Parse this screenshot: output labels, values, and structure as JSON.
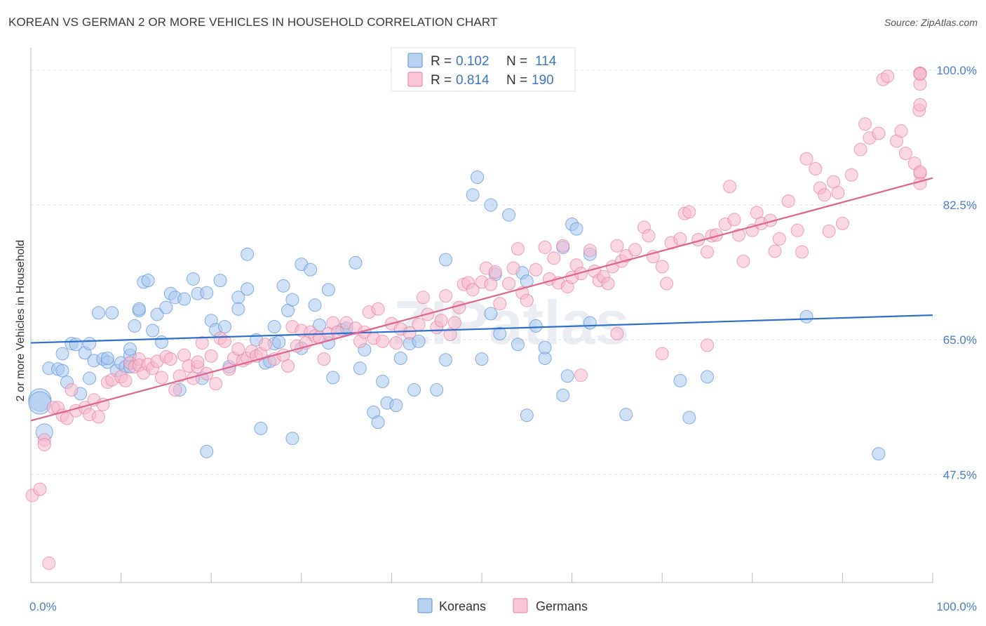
{
  "title": "KOREAN VS GERMAN 2 OR MORE VEHICLES IN HOUSEHOLD CORRELATION CHART",
  "source": "Source: ZipAtlas.com",
  "watermark": "ZIPatlas",
  "colors": {
    "koreans_fill": "#a9c8ee",
    "koreans_stroke": "#5b8fd6",
    "koreans_line": "#2f6fcc",
    "germans_fill": "#f6b8cc",
    "germans_stroke": "#e27fa0",
    "germans_line": "#e0638e",
    "tick_label": "#4a7cc7"
  },
  "legend": {
    "rows": [
      {
        "series": "koreans",
        "r_label": "R =",
        "r_value": "0.102",
        "n_label": "N =",
        "n_value": "114"
      },
      {
        "series": "germans",
        "r_label": "R =",
        "r_value": "0.814",
        "n_label": "N =",
        "n_value": "190"
      }
    ]
  },
  "chart_data": {
    "type": "scatter",
    "title": "KOREAN VS GERMAN 2 OR MORE VEHICLES IN HOUSEHOLD CORRELATION CHART",
    "xlabel": "",
    "ylabel": "2 or more Vehicles in Household",
    "xlim": [
      0,
      100
    ],
    "ylim": [
      33.5,
      102
    ],
    "x_tick_labels": [
      "0.0%",
      "100.0%"
    ],
    "y_ticks": [
      47.5,
      65.0,
      82.5,
      100.0
    ],
    "y_tick_labels": [
      "47.5%",
      "65.0%",
      "82.5%",
      "100.0%"
    ],
    "grid": "horizontal dashed",
    "legend_position": "top-center",
    "series": [
      {
        "name": "Koreans",
        "trend": {
          "x": [
            0,
            100
          ],
          "y": [
            64.6,
            68.2
          ]
        },
        "points": [
          [
            1,
            57.2
          ],
          [
            1,
            56.8
          ],
          [
            1.5,
            53
          ],
          [
            2,
            61.3
          ],
          [
            3,
            61.2
          ],
          [
            3.5,
            63.2
          ],
          [
            3.5,
            61
          ],
          [
            4,
            59.5
          ],
          [
            4.5,
            64.5
          ],
          [
            5,
            64.4
          ],
          [
            5.5,
            58
          ],
          [
            6,
            63.3
          ],
          [
            6.5,
            60
          ],
          [
            6.5,
            64.5
          ],
          [
            7,
            62.3
          ],
          [
            7.5,
            68.5
          ],
          [
            8,
            62.5
          ],
          [
            8.5,
            62.1
          ],
          [
            8.5,
            62.6
          ],
          [
            9,
            68.5
          ],
          [
            9.5,
            61
          ],
          [
            10,
            62
          ],
          [
            10.5,
            61.5
          ],
          [
            11,
            62
          ],
          [
            11,
            63
          ],
          [
            11,
            61.5
          ],
          [
            11,
            63.8
          ],
          [
            11.5,
            66.8
          ],
          [
            12,
            68.8
          ],
          [
            12,
            69
          ],
          [
            12.5,
            72.5
          ],
          [
            13,
            72.7
          ],
          [
            13.5,
            66.2
          ],
          [
            14,
            68.3
          ],
          [
            14.5,
            64.7
          ],
          [
            15,
            69.2
          ],
          [
            15.5,
            71
          ],
          [
            16,
            70.5
          ],
          [
            16.5,
            58.5
          ],
          [
            17,
            70.3
          ],
          [
            18,
            72.9
          ],
          [
            18.5,
            71
          ],
          [
            19,
            60
          ],
          [
            19.5,
            71.1
          ],
          [
            19.5,
            50.5
          ],
          [
            20,
            67.5
          ],
          [
            20.5,
            66.3
          ],
          [
            21,
            72.7
          ],
          [
            21.5,
            66.7
          ],
          [
            22,
            61.5
          ],
          [
            23,
            70.5
          ],
          [
            23,
            69
          ],
          [
            24,
            71.6
          ],
          [
            24,
            76.1
          ],
          [
            25,
            65
          ],
          [
            25.5,
            53.5
          ],
          [
            26,
            62
          ],
          [
            26.5,
            62.2
          ],
          [
            27,
            66.7
          ],
          [
            27,
            64.5
          ],
          [
            27.5,
            64.7
          ],
          [
            28,
            72
          ],
          [
            28.5,
            68.8
          ],
          [
            29,
            70.2
          ],
          [
            29,
            52.2
          ],
          [
            30,
            74.8
          ],
          [
            30,
            63.9
          ],
          [
            31,
            74.1
          ],
          [
            31.5,
            69.5
          ],
          [
            32,
            66.9
          ],
          [
            33,
            64.6
          ],
          [
            33,
            71.5
          ],
          [
            33.5,
            60.1
          ],
          [
            34.5,
            66.3
          ],
          [
            35,
            66.5
          ],
          [
            36,
            75
          ],
          [
            36.5,
            61.3
          ],
          [
            37,
            63.7
          ],
          [
            38,
            55.6
          ],
          [
            38.5,
            54.3
          ],
          [
            39,
            59.6
          ],
          [
            39.5,
            56.8
          ],
          [
            40.5,
            56.5
          ],
          [
            41,
            62.6
          ],
          [
            42,
            64.5
          ],
          [
            42.5,
            58.5
          ],
          [
            43,
            64.8
          ],
          [
            45,
            58.5
          ],
          [
            46,
            75.4
          ],
          [
            46,
            62.4
          ],
          [
            49,
            83.8
          ],
          [
            49.5,
            86.1
          ],
          [
            50,
            62.5
          ],
          [
            51,
            82.5
          ],
          [
            51,
            68.4
          ],
          [
            51.5,
            73.5
          ],
          [
            52,
            65.8
          ],
          [
            53,
            81.2
          ],
          [
            54,
            64.4
          ],
          [
            54.5,
            73.7
          ],
          [
            55,
            72.6
          ],
          [
            55,
            55.2
          ],
          [
            56,
            66.8
          ],
          [
            57,
            62.6
          ],
          [
            57,
            64
          ],
          [
            59,
            57.8
          ],
          [
            59,
            77
          ],
          [
            59.5,
            60.3
          ],
          [
            60,
            80
          ],
          [
            60.5,
            79.4
          ],
          [
            62,
            76.1
          ],
          [
            62,
            67.2
          ],
          [
            66,
            55.3
          ],
          [
            72,
            59.7
          ],
          [
            73,
            54.9
          ],
          [
            75,
            60.2
          ],
          [
            86,
            68
          ],
          [
            94,
            50.2
          ]
        ]
      },
      {
        "name": "Germans",
        "trend": {
          "x": [
            0,
            100
          ],
          "y": [
            54.5,
            86.0
          ]
        },
        "points": [
          [
            0,
            44.8
          ],
          [
            1,
            45.6
          ],
          [
            1.5,
            52
          ],
          [
            1.5,
            51.4
          ],
          [
            2,
            36
          ],
          [
            2.5,
            56.2
          ],
          [
            3,
            56.2
          ],
          [
            3.5,
            55.2
          ],
          [
            4,
            54.8
          ],
          [
            4.5,
            58.5
          ],
          [
            5,
            55.8
          ],
          [
            6,
            56.2
          ],
          [
            6.5,
            55.3
          ],
          [
            7,
            57.2
          ],
          [
            7.5,
            55
          ],
          [
            8,
            56.6
          ],
          [
            8.5,
            59.5
          ],
          [
            9,
            59.8
          ],
          [
            10,
            60.2
          ],
          [
            10.5,
            59.7
          ],
          [
            11,
            62
          ],
          [
            11.5,
            61.5
          ],
          [
            12,
            62.5
          ],
          [
            12,
            61.7
          ],
          [
            12.5,
            60.7
          ],
          [
            13,
            61.8
          ],
          [
            13.5,
            61.3
          ],
          [
            14,
            62.2
          ],
          [
            14.5,
            60.1
          ],
          [
            15,
            62.8
          ],
          [
            15.5,
            62.5
          ],
          [
            16,
            58.5
          ],
          [
            16.5,
            60.3
          ],
          [
            17,
            63
          ],
          [
            17.5,
            61.6
          ],
          [
            18,
            60
          ],
          [
            18.5,
            61.5
          ],
          [
            18.5,
            62.1
          ],
          [
            19,
            64.6
          ],
          [
            19.5,
            60.6
          ],
          [
            20,
            62.9
          ],
          [
            20.5,
            59.3
          ],
          [
            21,
            65.2
          ],
          [
            21.5,
            64.8
          ],
          [
            22,
            61.2
          ],
          [
            22.5,
            62.6
          ],
          [
            23,
            63.8
          ],
          [
            23.5,
            62.3
          ],
          [
            24,
            62.6
          ],
          [
            24.5,
            63.5
          ],
          [
            25,
            62.9
          ],
          [
            25.5,
            63.2
          ],
          [
            26,
            64.4
          ],
          [
            27,
            62.5
          ],
          [
            28,
            63
          ],
          [
            28.5,
            61.6
          ],
          [
            29,
            66.7
          ],
          [
            29.5,
            64.2
          ],
          [
            30,
            66.2
          ],
          [
            30.5,
            64.6
          ],
          [
            31,
            66
          ],
          [
            31.5,
            65.5
          ],
          [
            32,
            65.3
          ],
          [
            32.5,
            62.5
          ],
          [
            33,
            65.8
          ],
          [
            33.5,
            67.2
          ],
          [
            34,
            66
          ],
          [
            35,
            67.2
          ],
          [
            36,
            66.5
          ],
          [
            36.5,
            64.8
          ],
          [
            37,
            66
          ],
          [
            37.5,
            68.6
          ],
          [
            38,
            65.2
          ],
          [
            38.5,
            69
          ],
          [
            39,
            64.8
          ],
          [
            40,
            67.1
          ],
          [
            40.5,
            64.6
          ],
          [
            41,
            66.4
          ],
          [
            42,
            65.9
          ],
          [
            43,
            67
          ],
          [
            43.5,
            70.5
          ],
          [
            44,
            68.3
          ],
          [
            45,
            66.6
          ],
          [
            45.5,
            67.5
          ],
          [
            46,
            70.7
          ],
          [
            46.5,
            65.7
          ],
          [
            47,
            67.2
          ],
          [
            47.5,
            69.2
          ],
          [
            48,
            72.2
          ],
          [
            48.5,
            72.4
          ],
          [
            49,
            71.5
          ],
          [
            50,
            72.5
          ],
          [
            50.5,
            74.3
          ],
          [
            51,
            72.2
          ],
          [
            51.5,
            73.8
          ],
          [
            52,
            69.7
          ],
          [
            53,
            72.3
          ],
          [
            53.5,
            74.3
          ],
          [
            54,
            76.8
          ],
          [
            54.5,
            71.1
          ],
          [
            55,
            70.1
          ],
          [
            56,
            74.1
          ],
          [
            57,
            77
          ],
          [
            57.5,
            72.9
          ],
          [
            58,
            75.6
          ],
          [
            58.5,
            72.4
          ],
          [
            59,
            77.2
          ],
          [
            59.5,
            71.9
          ],
          [
            60,
            73.1
          ],
          [
            60.5,
            74.7
          ],
          [
            61,
            73.6
          ],
          [
            62,
            76.6
          ],
          [
            62.5,
            73.9
          ],
          [
            63,
            72.7
          ],
          [
            63.5,
            73.2
          ],
          [
            64,
            72.3
          ],
          [
            64.5,
            74.5
          ],
          [
            65,
            77.2
          ],
          [
            65.5,
            75.2
          ],
          [
            66,
            75.9
          ],
          [
            67,
            76.7
          ],
          [
            68,
            79.6
          ],
          [
            68.5,
            78.5
          ],
          [
            69,
            75.8
          ],
          [
            70,
            74.5
          ],
          [
            70.5,
            72.3
          ],
          [
            71,
            77.6
          ],
          [
            72,
            78.1
          ],
          [
            72.5,
            81.4
          ],
          [
            73,
            81.6
          ],
          [
            74,
            78
          ],
          [
            75,
            76.4
          ],
          [
            75.5,
            78.5
          ],
          [
            76,
            78.6
          ],
          [
            77,
            80
          ],
          [
            77.5,
            84.9
          ],
          [
            78,
            80.6
          ],
          [
            78.5,
            78.6
          ],
          [
            79,
            75.2
          ],
          [
            80,
            79.2
          ],
          [
            80.5,
            81.5
          ],
          [
            81,
            80.1
          ],
          [
            82,
            80.5
          ],
          [
            82.5,
            76.5
          ],
          [
            83,
            78.1
          ],
          [
            84,
            83
          ],
          [
            85,
            79.2
          ],
          [
            85.5,
            76.4
          ],
          [
            86,
            88.5
          ],
          [
            87,
            87.2
          ],
          [
            87.5,
            84.7
          ],
          [
            88,
            83.8
          ],
          [
            88.5,
            79.1
          ],
          [
            89,
            85.5
          ],
          [
            89.5,
            84.1
          ],
          [
            90,
            80.1
          ],
          [
            91,
            86.4
          ],
          [
            92,
            89.7
          ],
          [
            92.5,
            93
          ],
          [
            93,
            91.2
          ],
          [
            94,
            91.8
          ],
          [
            94.5,
            98.8
          ],
          [
            95,
            99.2
          ],
          [
            96,
            90.8
          ],
          [
            96.5,
            92.1
          ],
          [
            97,
            89.2
          ],
          [
            98,
            87.9
          ],
          [
            98.5,
            94.8
          ],
          [
            99,
            98.2
          ],
          [
            99.5,
            86.6
          ],
          [
            100,
            85.3
          ],
          [
            101,
            99.6
          ],
          [
            102,
            95.5
          ],
          [
            103,
            99.6
          ],
          [
            103.5,
            99.5
          ],
          [
            104,
            86.8
          ],
          [
            61,
            60.4
          ],
          [
            65,
            65.8
          ],
          [
            70,
            63.2
          ],
          [
            75,
            64.3
          ]
        ]
      }
    ]
  },
  "bottom_legend": [
    {
      "series": "koreans",
      "label": "Koreans"
    },
    {
      "series": "germans",
      "label": "Germans"
    }
  ]
}
